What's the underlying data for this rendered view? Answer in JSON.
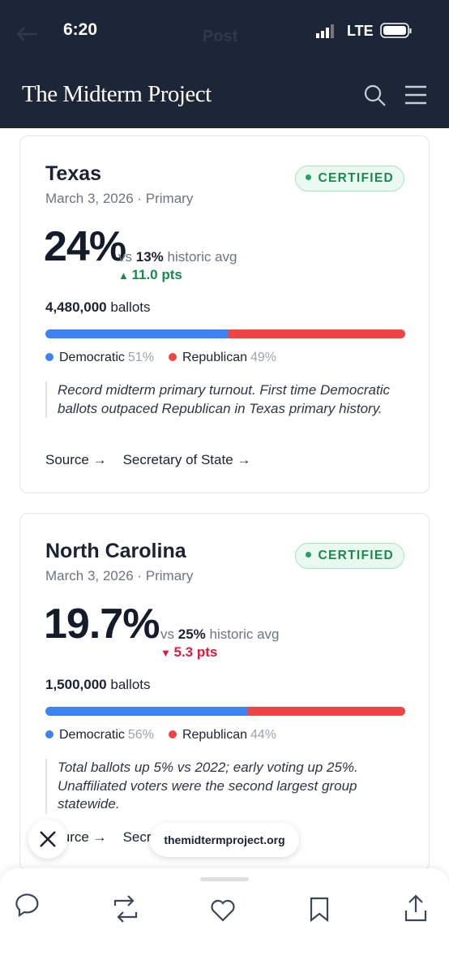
{
  "status_bar": {
    "time": "6:20",
    "network": "LTE",
    "title": "Post"
  },
  "header": {
    "logo": "The Midterm Project"
  },
  "cards": [
    {
      "state": "Texas",
      "status": "CERTIFIED",
      "date": "March 3, 2026 · Primary",
      "turnout": "24%",
      "comparison": {
        "prefix": "vs",
        "value": "13%",
        "suffix": "historic avg"
      },
      "change": {
        "text": "11.0 pts",
        "direction": "up"
      },
      "ballots": {
        "count": "4,480,000",
        "label": "ballots"
      },
      "democratic": {
        "label": "Democratic",
        "value": 51,
        "value_label": "51%"
      },
      "republican": {
        "label": "Republican",
        "value": 49,
        "value_label": "49%"
      },
      "note": "Record midterm primary turnout. First time Democratic ballots outpaced Republican in Texas primary history.",
      "links": [
        "Source →",
        "Secretary of State →"
      ]
    },
    {
      "state": "North Carolina",
      "status": "CERTIFIED",
      "date": "March 3, 2026 · Primary",
      "turnout": "19.7%",
      "comparison": {
        "prefix": "vs",
        "value": "25%",
        "suffix": "historic avg"
      },
      "change": {
        "text": "5.3 pts",
        "direction": "down"
      },
      "ballots": {
        "count": "1,500,000",
        "label": "ballots"
      },
      "democratic": {
        "label": "Democratic",
        "value": 56,
        "value_label": "56%"
      },
      "republican": {
        "label": "Republican",
        "value": 44,
        "value_label": "44%"
      },
      "note": "Total ballots up 5% vs 2022; early voting up 25%. Unaffiliated voters were the second largest group statewide.",
      "links": [
        "Source →",
        "Secretary of State →"
      ]
    }
  ],
  "toast": {
    "text": "themidtermproject.org"
  }
}
